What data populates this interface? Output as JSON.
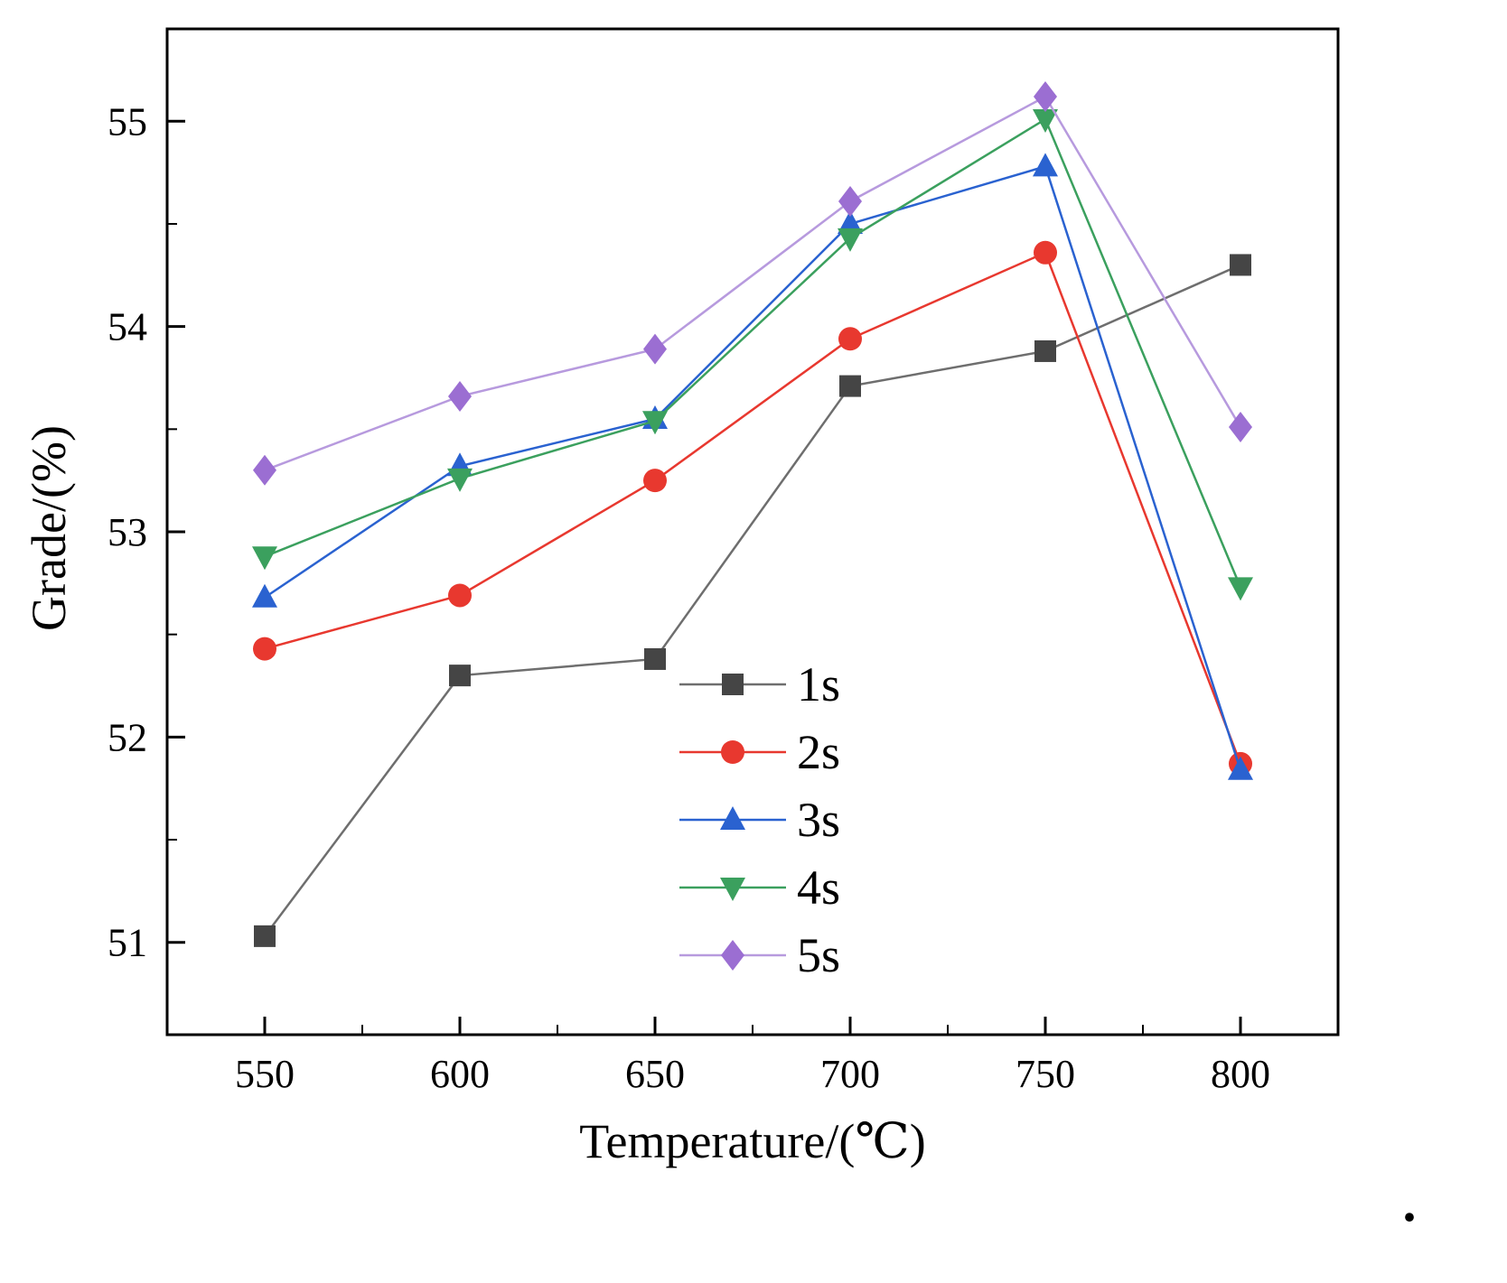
{
  "footnote_dot": ".",
  "chart_data": {
    "type": "line",
    "title": "",
    "xlabel": "Temperature/(℃)",
    "ylabel": "Grade/(%)",
    "grid": false,
    "legend_position": "inside lower-center-right",
    "xlim": [
      525,
      825
    ],
    "ylim": [
      50.55,
      55.45
    ],
    "x_ticks": [
      550,
      600,
      650,
      700,
      750,
      800
    ],
    "x_minor_ticks": [
      575,
      625,
      675,
      725,
      775
    ],
    "y_ticks": [
      51,
      52,
      53,
      54,
      55
    ],
    "y_minor_ticks": [
      51.5,
      52.5,
      53.5,
      54.5
    ],
    "x": [
      550,
      600,
      650,
      700,
      750,
      800
    ],
    "series": [
      {
        "name": "1s",
        "marker": "square",
        "line_color": "#6e6e6e",
        "marker_color": "#454545",
        "values": [
          51.03,
          52.3,
          52.38,
          53.71,
          53.88,
          54.3
        ]
      },
      {
        "name": "2s",
        "marker": "circle",
        "line_color": "#e8382f",
        "marker_color": "#e8382f",
        "values": [
          52.43,
          52.69,
          53.25,
          53.94,
          54.36,
          51.87
        ]
      },
      {
        "name": "3s",
        "marker": "triangle-up",
        "line_color": "#2a62d0",
        "marker_color": "#2a62d0",
        "values": [
          52.68,
          53.32,
          53.55,
          54.5,
          54.78,
          51.84
        ]
      },
      {
        "name": "4s",
        "marker": "triangle-down",
        "line_color": "#3ba05e",
        "marker_color": "#3ba05e",
        "values": [
          52.88,
          53.26,
          53.54,
          54.43,
          55.01,
          52.73
        ]
      },
      {
        "name": "5s",
        "marker": "diamond",
        "line_color": "#b79ade",
        "marker_color": "#9b6ed2",
        "values": [
          53.3,
          53.66,
          53.89,
          54.61,
          55.12,
          53.51
        ]
      }
    ]
  }
}
